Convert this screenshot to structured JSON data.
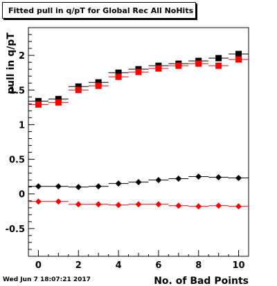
{
  "footer": {
    "timestamp": "Wed Jun  7 18:07:21 2017"
  },
  "chart_data": {
    "type": "scatter",
    "title": "Fitted pull in q/pT for Global Rec All NoHits",
    "xlabel": "No. of Bad Points",
    "ylabel": "pull in q/pT",
    "xlim": [
      -0.5,
      10.5
    ],
    "ylim": [
      -0.9,
      2.4
    ],
    "xticks": [
      0,
      2,
      4,
      6,
      8,
      10
    ],
    "yticks": [
      -0.5,
      0,
      0.5,
      1,
      1.5,
      2
    ],
    "grid": false,
    "legend": "none",
    "x": [
      0,
      1,
      2,
      3,
      4,
      5,
      6,
      7,
      8,
      9,
      10
    ],
    "series": [
      {
        "marker": "square",
        "color": "#000000",
        "values": [
          1.34,
          1.37,
          1.55,
          1.61,
          1.75,
          1.8,
          1.85,
          1.88,
          1.92,
          1.96,
          2.02
        ]
      },
      {
        "marker": "square",
        "color": "#ff0000",
        "values": [
          1.29,
          1.32,
          1.5,
          1.56,
          1.69,
          1.76,
          1.81,
          1.85,
          1.88,
          1.85,
          1.94
        ]
      },
      {
        "marker": "diamond",
        "color": "#000000",
        "values": [
          0.11,
          0.11,
          0.1,
          0.11,
          0.15,
          0.17,
          0.2,
          0.22,
          0.25,
          0.24,
          0.23
        ]
      },
      {
        "marker": "diamond",
        "color": "#ff0000",
        "values": [
          -0.11,
          -0.11,
          -0.15,
          -0.15,
          -0.16,
          -0.15,
          -0.15,
          -0.17,
          -0.18,
          -0.17,
          -0.18
        ]
      }
    ]
  }
}
